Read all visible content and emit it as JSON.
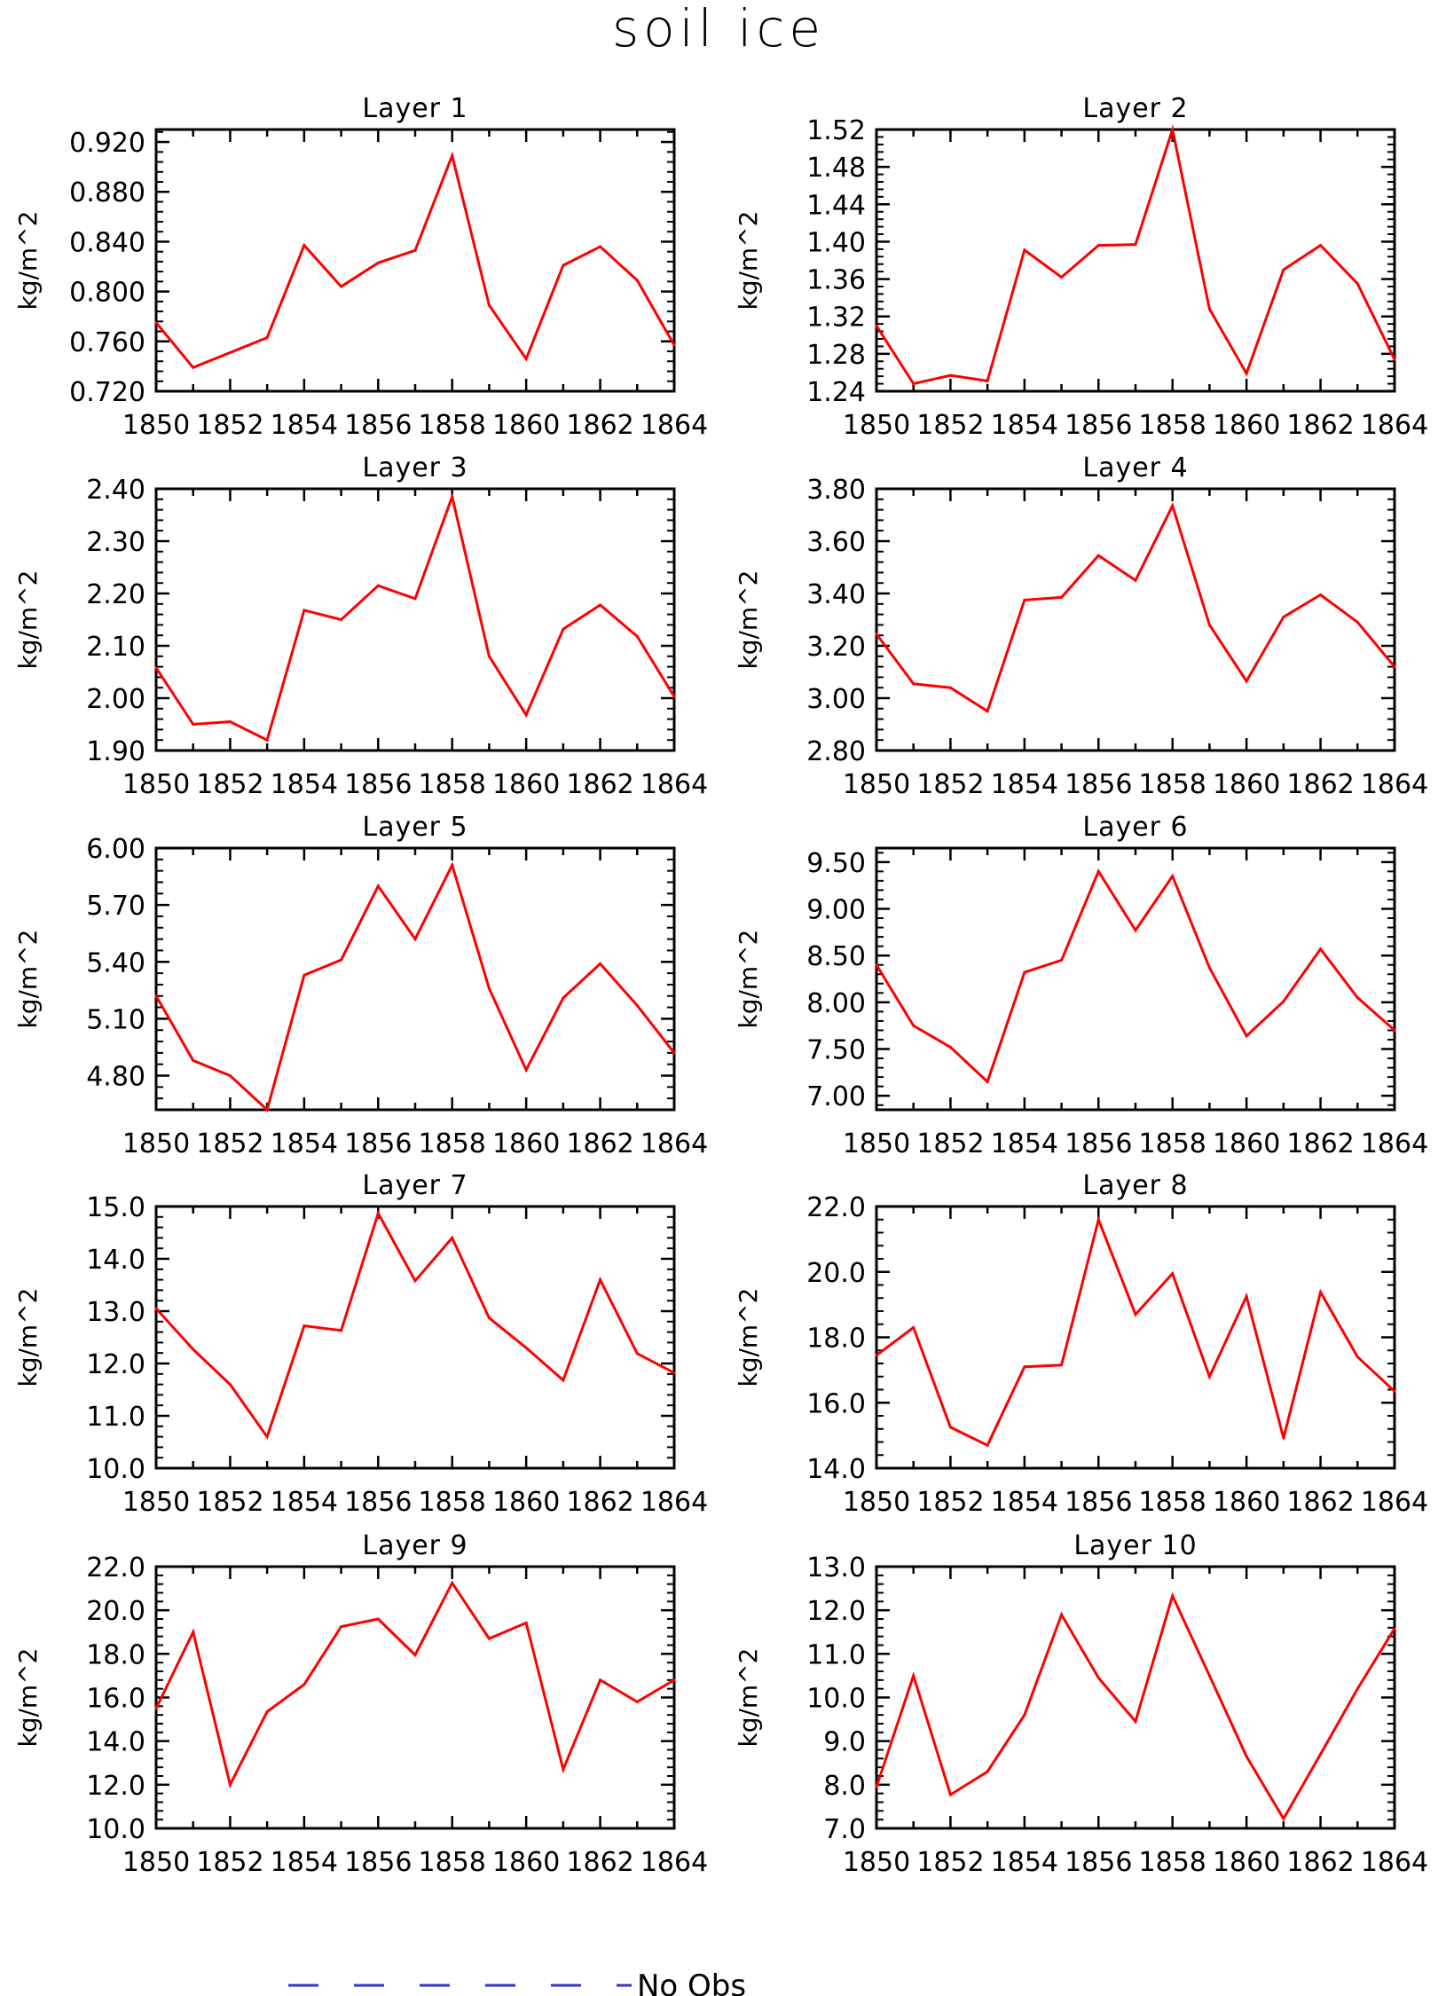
{
  "title": "soil ice",
  "legend": {
    "label": "No Obs",
    "line_color": "#3333cc",
    "line_style": "dashed",
    "placement": "bottom"
  },
  "series_color": "#ff0000",
  "chart_data": [
    {
      "type": "line",
      "title": "Layer 1",
      "ylabel": "kg/m^2",
      "x": [
        1850,
        1851,
        1852,
        1853,
        1854,
        1855,
        1856,
        1857,
        1858,
        1859,
        1860,
        1861,
        1862,
        1863,
        1864
      ],
      "xticks": [
        "1850",
        "1852",
        "1854",
        "1856",
        "1858",
        "1860",
        "1862",
        "1864"
      ],
      "ylim": [
        0.72,
        0.93
      ],
      "yticks": [
        "0.720",
        "0.760",
        "0.800",
        "0.840",
        "0.880",
        "0.920"
      ],
      "values": [
        0.775,
        0.739,
        0.751,
        0.763,
        0.837,
        0.804,
        0.823,
        0.833,
        0.909,
        0.789,
        0.746,
        0.821,
        0.836,
        0.809,
        0.757
      ]
    },
    {
      "type": "line",
      "title": "Layer 2",
      "ylabel": "kg/m^2",
      "x": [
        1850,
        1851,
        1852,
        1853,
        1854,
        1855,
        1856,
        1857,
        1858,
        1859,
        1860,
        1861,
        1862,
        1863,
        1864
      ],
      "xticks": [
        "1850",
        "1852",
        "1854",
        "1856",
        "1858",
        "1860",
        "1862",
        "1864"
      ],
      "ylim": [
        1.24,
        1.52
      ],
      "yticks": [
        "1.24",
        "1.28",
        "1.32",
        "1.36",
        "1.40",
        "1.44",
        "1.48",
        "1.52"
      ],
      "values": [
        1.31,
        1.248,
        1.257,
        1.251,
        1.391,
        1.362,
        1.396,
        1.397,
        1.52,
        1.328,
        1.259,
        1.37,
        1.396,
        1.355,
        1.274
      ]
    },
    {
      "type": "line",
      "title": "Layer 3",
      "ylabel": "kg/m^2",
      "x": [
        1850,
        1851,
        1852,
        1853,
        1854,
        1855,
        1856,
        1857,
        1858,
        1859,
        1860,
        1861,
        1862,
        1863,
        1864
      ],
      "xticks": [
        "1850",
        "1852",
        "1854",
        "1856",
        "1858",
        "1860",
        "1862",
        "1864"
      ],
      "ylim": [
        1.9,
        2.4
      ],
      "yticks": [
        "1.90",
        "2.00",
        "2.10",
        "2.20",
        "2.30",
        "2.40"
      ],
      "values": [
        2.058,
        1.95,
        1.955,
        1.92,
        2.168,
        2.15,
        2.215,
        2.19,
        2.385,
        2.08,
        1.968,
        2.132,
        2.178,
        2.118,
        2.003
      ]
    },
    {
      "type": "line",
      "title": "Layer 4",
      "ylabel": "kg/m^2",
      "x": [
        1850,
        1851,
        1852,
        1853,
        1854,
        1855,
        1856,
        1857,
        1858,
        1859,
        1860,
        1861,
        1862,
        1863,
        1864
      ],
      "xticks": [
        "1850",
        "1852",
        "1854",
        "1856",
        "1858",
        "1860",
        "1862",
        "1864"
      ],
      "ylim": [
        2.8,
        3.8
      ],
      "yticks": [
        "2.80",
        "3.00",
        "3.20",
        "3.40",
        "3.60",
        "3.80"
      ],
      "values": [
        3.245,
        3.055,
        3.04,
        2.95,
        3.375,
        3.385,
        3.545,
        3.45,
        3.735,
        3.28,
        3.065,
        3.31,
        3.395,
        3.29,
        3.12
      ]
    },
    {
      "type": "line",
      "title": "Layer 5",
      "ylabel": "kg/m^2",
      "x": [
        1850,
        1851,
        1852,
        1853,
        1854,
        1855,
        1856,
        1857,
        1858,
        1859,
        1860,
        1861,
        1862,
        1863,
        1864
      ],
      "xticks": [
        "1850",
        "1852",
        "1854",
        "1856",
        "1858",
        "1860",
        "1862",
        "1864"
      ],
      "ylim": [
        4.62,
        6.0
      ],
      "yticks": [
        "4.80",
        "5.10",
        "5.40",
        "5.70",
        "6.00"
      ],
      "values": [
        5.22,
        4.88,
        4.8,
        4.62,
        5.33,
        5.41,
        5.8,
        5.52,
        5.91,
        5.26,
        4.83,
        5.21,
        5.39,
        5.17,
        4.92
      ]
    },
    {
      "type": "line",
      "title": "Layer 6",
      "ylabel": "kg/m^2",
      "x": [
        1850,
        1851,
        1852,
        1853,
        1854,
        1855,
        1856,
        1857,
        1858,
        1859,
        1860,
        1861,
        1862,
        1863,
        1864
      ],
      "xticks": [
        "1850",
        "1852",
        "1854",
        "1856",
        "1858",
        "1860",
        "1862",
        "1864"
      ],
      "ylim": [
        6.85,
        9.65
      ],
      "yticks": [
        "7.00",
        "7.50",
        "8.00",
        "8.50",
        "9.00",
        "9.50"
      ],
      "values": [
        8.4,
        7.75,
        7.52,
        7.15,
        8.32,
        8.45,
        9.4,
        8.77,
        9.35,
        8.37,
        7.64,
        8.01,
        8.57,
        8.05,
        7.7
      ]
    },
    {
      "type": "line",
      "title": "Layer 7",
      "ylabel": "kg/m^2",
      "x": [
        1850,
        1851,
        1852,
        1853,
        1854,
        1855,
        1856,
        1857,
        1858,
        1859,
        1860,
        1861,
        1862,
        1863,
        1864
      ],
      "xticks": [
        "1850",
        "1852",
        "1854",
        "1856",
        "1858",
        "1860",
        "1862",
        "1864"
      ],
      "ylim": [
        10.0,
        15.0
      ],
      "yticks": [
        "10.0",
        "11.0",
        "12.0",
        "13.0",
        "14.0",
        "15.0"
      ],
      "values": [
        13.05,
        12.27,
        11.6,
        10.6,
        12.72,
        12.63,
        14.87,
        13.58,
        14.4,
        12.87,
        12.3,
        11.68,
        13.6,
        12.19,
        11.82
      ]
    },
    {
      "type": "line",
      "title": "Layer 8",
      "ylabel": "kg/m^2",
      "x": [
        1850,
        1851,
        1852,
        1853,
        1854,
        1855,
        1856,
        1857,
        1858,
        1859,
        1860,
        1861,
        1862,
        1863,
        1864
      ],
      "xticks": [
        "1850",
        "1852",
        "1854",
        "1856",
        "1858",
        "1860",
        "1862",
        "1864"
      ],
      "ylim": [
        14.0,
        22.0
      ],
      "yticks": [
        "14.0",
        "16.0",
        "18.0",
        "20.0",
        "22.0"
      ],
      "values": [
        17.45,
        18.3,
        15.25,
        14.7,
        17.1,
        17.15,
        21.6,
        18.7,
        19.95,
        16.8,
        19.25,
        14.92,
        19.38,
        17.4,
        16.35
      ]
    },
    {
      "type": "line",
      "title": "Layer 9",
      "ylabel": "kg/m^2",
      "x": [
        1850,
        1851,
        1852,
        1853,
        1854,
        1855,
        1856,
        1857,
        1858,
        1859,
        1860,
        1861,
        1862,
        1863,
        1864
      ],
      "xticks": [
        "1850",
        "1852",
        "1854",
        "1856",
        "1858",
        "1860",
        "1862",
        "1864"
      ],
      "ylim": [
        10.0,
        22.0
      ],
      "yticks": [
        "10.0",
        "12.0",
        "14.0",
        "16.0",
        "18.0",
        "20.0",
        "22.0"
      ],
      "values": [
        15.5,
        19.0,
        12.0,
        15.35,
        16.6,
        19.25,
        19.6,
        17.95,
        21.25,
        18.7,
        19.42,
        12.7,
        16.8,
        15.8,
        16.8
      ]
    },
    {
      "type": "line",
      "title": "Layer 10",
      "ylabel": "kg/m^2",
      "x": [
        1850,
        1851,
        1852,
        1853,
        1854,
        1855,
        1856,
        1857,
        1858,
        1859,
        1860,
        1861,
        1862,
        1863,
        1864
      ],
      "xticks": [
        "1850",
        "1852",
        "1854",
        "1856",
        "1858",
        "1860",
        "1862",
        "1864"
      ],
      "ylim": [
        7.0,
        13.0
      ],
      "yticks": [
        "7.0",
        "8.0",
        "9.0",
        "10.0",
        "11.0",
        "12.0",
        "13.0"
      ],
      "values": [
        7.95,
        10.5,
        7.77,
        8.3,
        9.6,
        11.9,
        10.45,
        9.45,
        12.33,
        10.5,
        8.65,
        7.22,
        8.7,
        10.2,
        11.58
      ]
    }
  ]
}
